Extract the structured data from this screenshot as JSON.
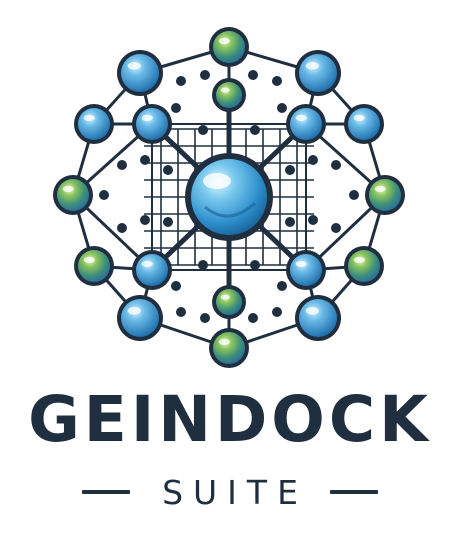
{
  "brand": {
    "name": "GEINDOCK",
    "subtitle": "SUITE",
    "text_color": "#1f2f3f"
  },
  "logo": {
    "icon": "molecular-network-icon",
    "colors": {
      "line": "#1f2f3f",
      "blue_node": "#3a8fd0",
      "blue_node_light": "#9fd4f2",
      "green_node": "#5fa84a",
      "green_node_light": "#c8e89a",
      "core": "#45a6dc",
      "core_light": "#b8e4f8",
      "outline": "#1f2f3f"
    }
  }
}
